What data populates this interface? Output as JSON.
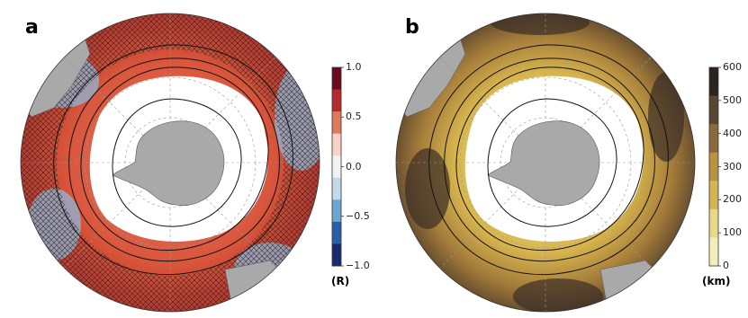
{
  "panels": [
    {
      "label": "a",
      "colorbar": {
        "unit": "(R)",
        "ticks": [
          "1.0",
          "0.5",
          "0.0",
          "−0.5",
          "−1.0"
        ],
        "colors": [
          "#6b0a1f",
          "#b32a2f",
          "#e07a5c",
          "#f6d3c4",
          "#f2f2f2",
          "#c3d9ea",
          "#6ea6d3",
          "#2a5fa8",
          "#1a2a6e"
        ]
      },
      "ocean_color": "#d8553b",
      "hatched": true
    },
    {
      "label": "b",
      "colorbar": {
        "unit": "(km)",
        "ticks": [
          "600",
          "500",
          "400",
          "300",
          "200",
          "100",
          "0"
        ],
        "colors": [
          "#2b2320",
          "#5a4530",
          "#8a6a3a",
          "#b8923e",
          "#d6b454",
          "#e7d88a",
          "#f2f0b8"
        ]
      },
      "ocean_color": "#c9a24a",
      "hatched": false
    }
  ],
  "colors": {
    "land": "#a9a9a9",
    "sea_ice": "#ffffff",
    "contour": "#111111",
    "graticule": "#9a9a9a"
  }
}
